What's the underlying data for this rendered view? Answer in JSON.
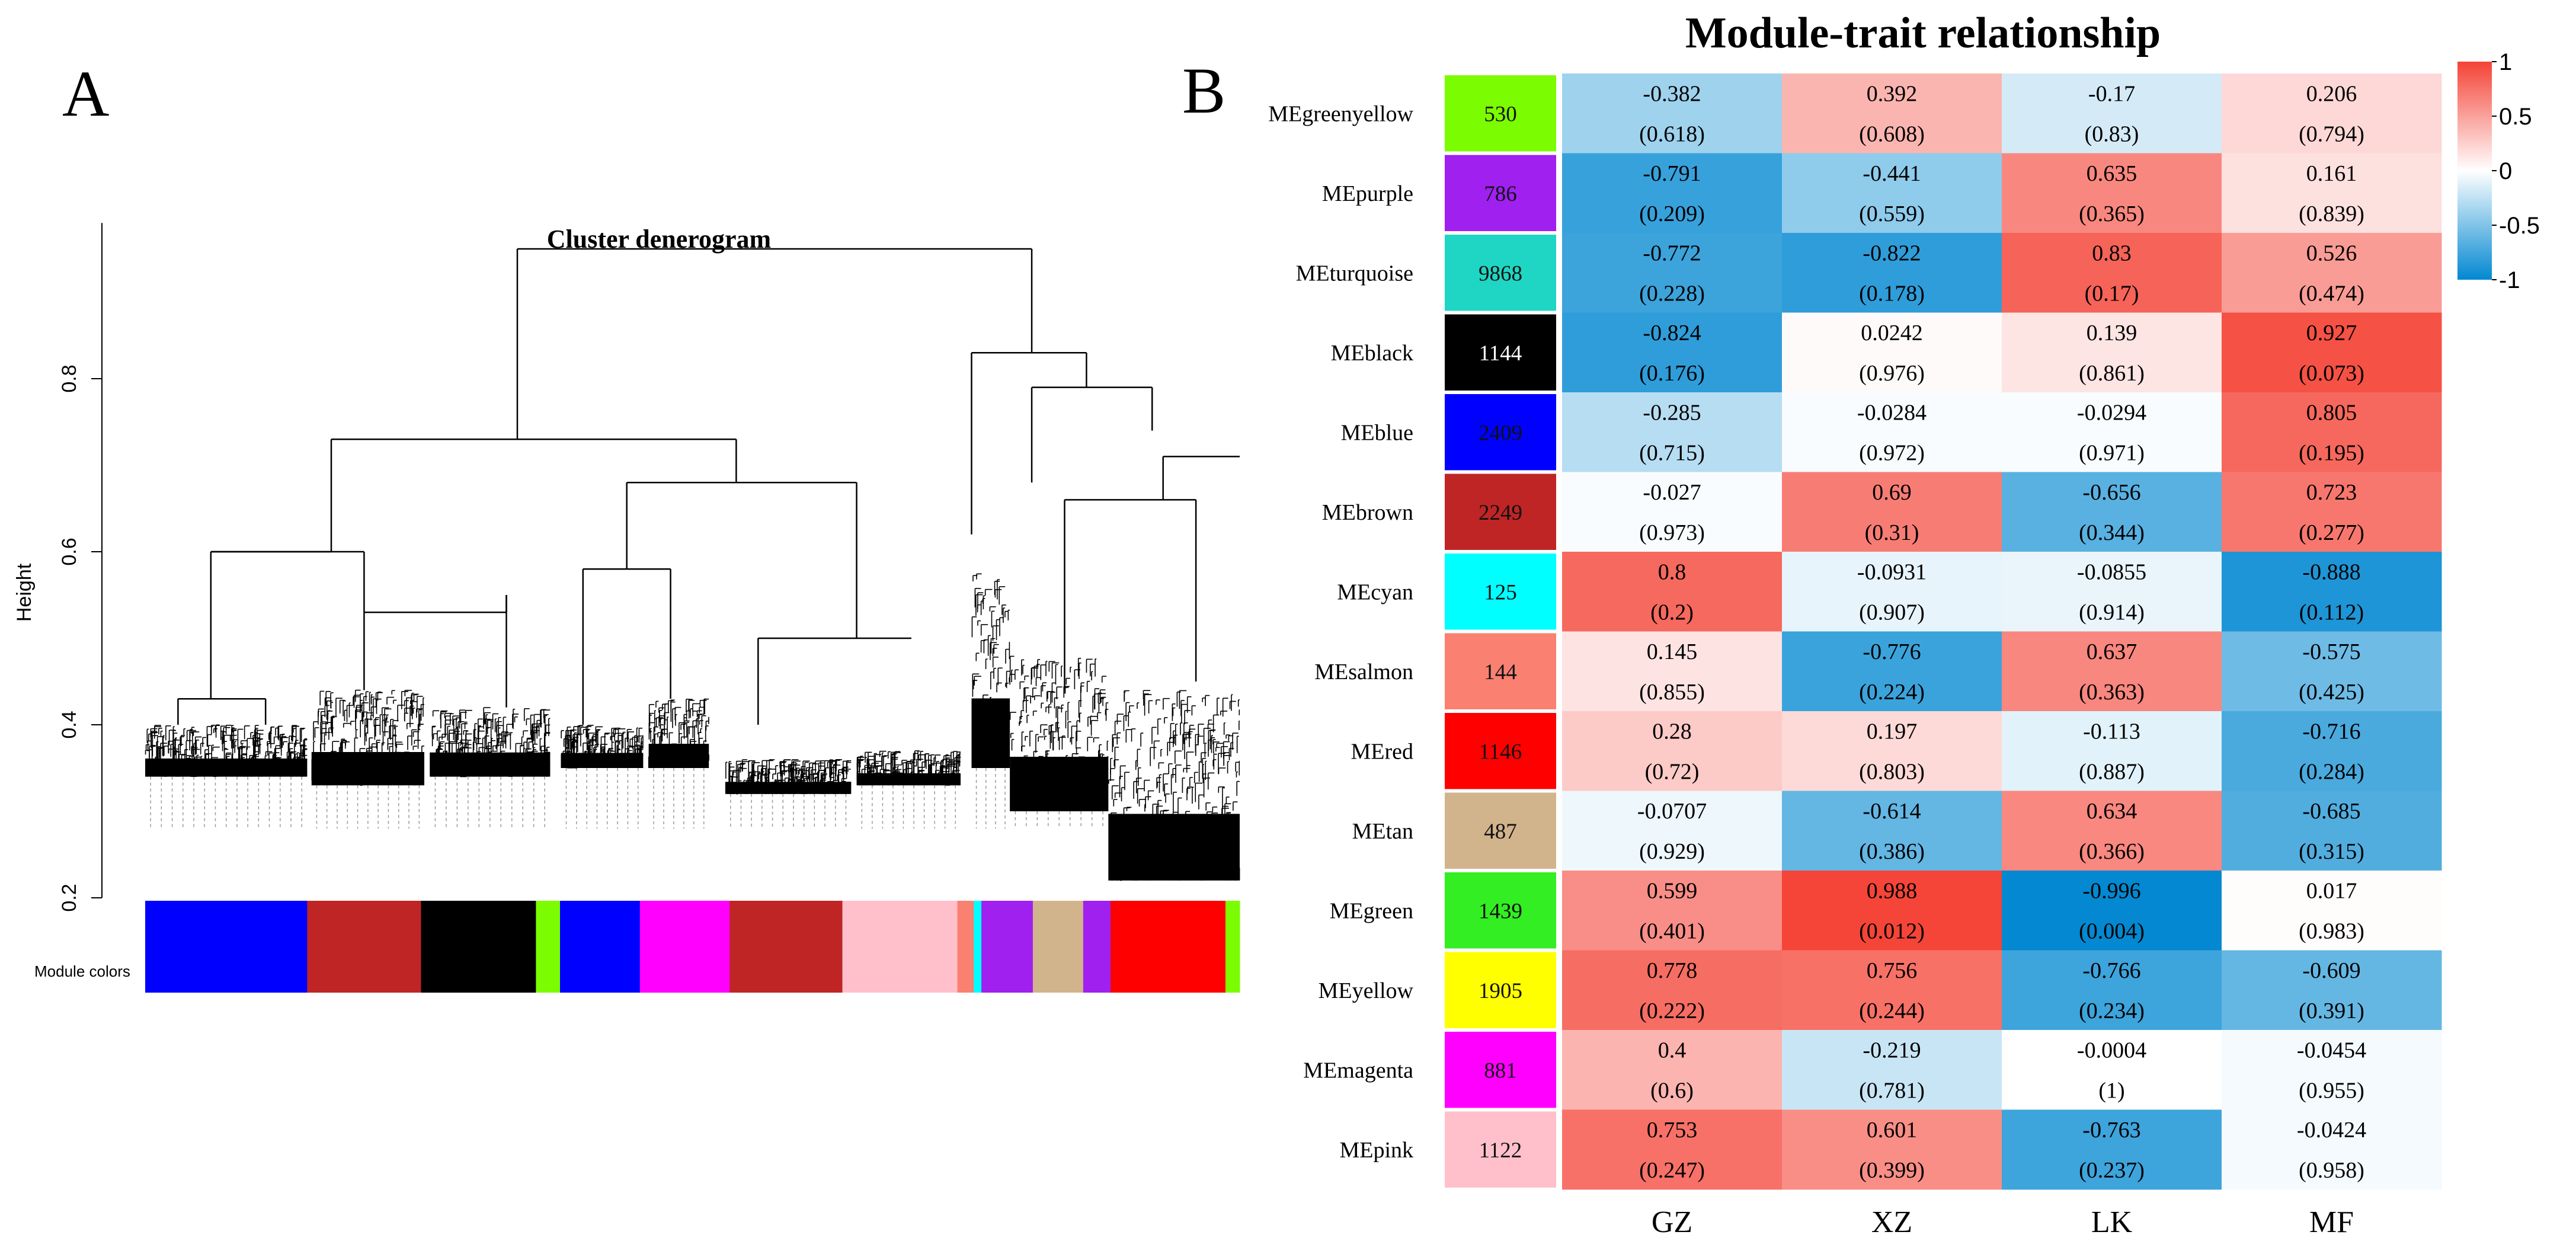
{
  "panel_a": {
    "label": "A",
    "title": "Cluster denerogram",
    "ylabel": "Height",
    "ylim": [
      0.2,
      0.98
    ],
    "yticks": [
      0.2,
      0.4,
      0.6,
      0.8
    ],
    "yticklabels": [
      "0.2",
      "0.4",
      "0.6",
      "0.8"
    ],
    "module_colors_label": "Module colors",
    "module_color_sequence": [
      {
        "color": "#0000ff",
        "weight": 0.148
      },
      {
        "color": "#bf2525",
        "weight": 0.104
      },
      {
        "color": "#000000",
        "weight": 0.105
      },
      {
        "color": "#7cfc00",
        "weight": 0.022
      },
      {
        "color": "#0000ff",
        "weight": 0.073
      },
      {
        "color": "#ff00ff",
        "weight": 0.082
      },
      {
        "color": "#bf2525",
        "weight": 0.103
      },
      {
        "color": "#ffc0cb",
        "weight": 0.105
      },
      {
        "color": "#fa8072",
        "weight": 0.015
      },
      {
        "color": "#00ffff",
        "weight": 0.007
      },
      {
        "color": "#a020f0",
        "weight": 0.047
      },
      {
        "color": "#d2b48c",
        "weight": 0.046
      },
      {
        "color": "#a020f0",
        "weight": 0.025
      },
      {
        "color": "#ff0000",
        "weight": 0.105
      },
      {
        "color": "#7cfc00",
        "weight": 0.013
      }
    ]
  },
  "chart_data": {
    "type": "heatmap",
    "label": "B",
    "title": "Module-trait relationship",
    "columns": [
      "GZ",
      "XZ",
      "LK",
      "MF"
    ],
    "color_scale": {
      "min": -1,
      "max": 1,
      "low": "#0288d1",
      "mid": "#ffffff",
      "high": "#f44336"
    },
    "legend_ticks": [
      1,
      0.5,
      0,
      -0.5,
      -1
    ],
    "legend_labels": [
      "1",
      "0.5",
      "0",
      "-0.5",
      "-1"
    ],
    "rows": [
      {
        "name": "MEgreenyellow",
        "color": "#7cfc00",
        "size": "530",
        "corr": [
          "-0.382",
          "0.392",
          "-0.17",
          "0.206"
        ],
        "p": [
          "(0.618)",
          "(0.608)",
          "(0.83)",
          "(0.794)"
        ]
      },
      {
        "name": "MEpurple",
        "color": "#a020f0",
        "size": "786",
        "corr": [
          "-0.791",
          "-0.441",
          "0.635",
          "0.161"
        ],
        "p": [
          "(0.209)",
          "(0.559)",
          "(0.365)",
          "(0.839)"
        ]
      },
      {
        "name": "MEturquoise",
        "color": "#1fd6c4",
        "size": "9868",
        "corr": [
          "-0.772",
          "-0.822",
          "0.83",
          "0.526"
        ],
        "p": [
          "(0.228)",
          "(0.178)",
          "(0.17)",
          "(0.474)"
        ]
      },
      {
        "name": "MEblack",
        "color": "#000000",
        "size": "1144",
        "corr": [
          "-0.824",
          "0.0242",
          "0.139",
          "0.927"
        ],
        "p": [
          "(0.176)",
          "(0.976)",
          "(0.861)",
          "(0.073)"
        ]
      },
      {
        "name": "MEblue",
        "color": "#0000ff",
        "size": "2409",
        "corr": [
          "-0.285",
          "-0.0284",
          "-0.0294",
          "0.805"
        ],
        "p": [
          "(0.715)",
          "(0.972)",
          "(0.971)",
          "(0.195)"
        ]
      },
      {
        "name": "MEbrown",
        "color": "#bf2525",
        "size": "2249",
        "corr": [
          "-0.027",
          "0.69",
          "-0.656",
          "0.723"
        ],
        "p": [
          "(0.973)",
          "(0.31)",
          "(0.344)",
          "(0.277)"
        ]
      },
      {
        "name": "MEcyan",
        "color": "#00ffff",
        "size": "125",
        "corr": [
          "0.8",
          "-0.0931",
          "-0.0855",
          "-0.888"
        ],
        "p": [
          "(0.2)",
          "(0.907)",
          "(0.914)",
          "(0.112)"
        ]
      },
      {
        "name": "MEsalmon",
        "color": "#fa8072",
        "size": "144",
        "corr": [
          "0.145",
          "-0.776",
          "0.637",
          "-0.575"
        ],
        "p": [
          "(0.855)",
          "(0.224)",
          "(0.363)",
          "(0.425)"
        ]
      },
      {
        "name": "MEred",
        "color": "#ff0000",
        "size": "1146",
        "corr": [
          "0.28",
          "0.197",
          "-0.113",
          "-0.716"
        ],
        "p": [
          "(0.72)",
          "(0.803)",
          "(0.887)",
          "(0.284)"
        ]
      },
      {
        "name": "MEtan",
        "color": "#d2b48c",
        "size": "487",
        "corr": [
          "-0.0707",
          "-0.614",
          "0.634",
          "-0.685"
        ],
        "p": [
          "(0.929)",
          "(0.386)",
          "(0.366)",
          "(0.315)"
        ]
      },
      {
        "name": "MEgreen",
        "color": "#33ee22",
        "size": "1439",
        "corr": [
          "0.599",
          "0.988",
          "-0.996",
          "0.017"
        ],
        "p": [
          "(0.401)",
          "(0.012)",
          "(0.004)",
          "(0.983)"
        ]
      },
      {
        "name": "MEyellow",
        "color": "#ffff00",
        "size": "1905",
        "corr": [
          "0.778",
          "0.756",
          "-0.766",
          "-0.609"
        ],
        "p": [
          "(0.222)",
          "(0.244)",
          "(0.234)",
          "(0.391)"
        ]
      },
      {
        "name": "MEmagenta",
        "color": "#ff00ff",
        "size": "881",
        "corr": [
          "0.4",
          "-0.219",
          "-0.0004",
          "-0.0454"
        ],
        "p": [
          "(0.6)",
          "(0.781)",
          "(1)",
          "(0.955)"
        ]
      },
      {
        "name": "MEpink",
        "color": "#ffc0cb",
        "size": "1122",
        "corr": [
          "0.753",
          "0.601",
          "-0.763",
          "-0.0424"
        ],
        "p": [
          "(0.247)",
          "(0.399)",
          "(0.237)",
          "(0.958)"
        ]
      }
    ]
  }
}
